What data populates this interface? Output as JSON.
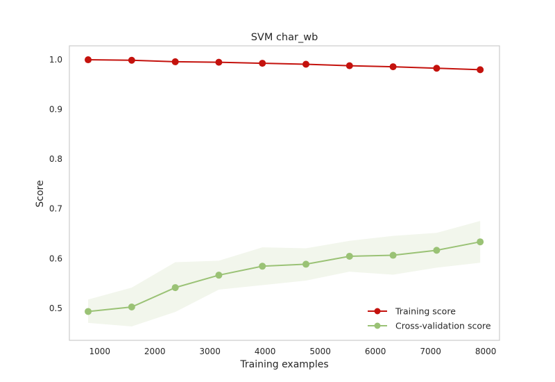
{
  "chart_data": {
    "type": "line",
    "title": "SVM char_wb",
    "xlabel": "Training examples",
    "ylabel": "Score",
    "xlim": [
      450,
      8250
    ],
    "ylim": [
      0.435,
      1.027
    ],
    "xticks": [
      1000,
      2000,
      3000,
      4000,
      5000,
      6000,
      7000,
      8000
    ],
    "yticks": [
      0.5,
      0.6,
      0.7,
      0.8,
      0.9,
      1.0
    ],
    "xtick_labels": [
      "1000",
      "2000",
      "3000",
      "4000",
      "5000",
      "6000",
      "7000",
      "8000"
    ],
    "ytick_labels": [
      "0.5",
      "0.6",
      "0.7",
      "0.8",
      "0.9",
      "1.0"
    ],
    "grid": false,
    "legend_position": "bottom-right",
    "x": [
      790,
      1580,
      2370,
      3160,
      3950,
      4740,
      5530,
      6320,
      7110,
      7900
    ],
    "series": [
      {
        "name": "Training score",
        "color": "#c4120d",
        "values": [
          0.999,
          0.998,
          0.995,
          0.994,
          0.992,
          0.99,
          0.987,
          0.985,
          0.982,
          0.979
        ],
        "band_lower": [
          0.998,
          0.997,
          0.994,
          0.993,
          0.991,
          0.989,
          0.986,
          0.984,
          0.981,
          0.978
        ],
        "band_upper": [
          1.0,
          0.999,
          0.996,
          0.995,
          0.993,
          0.991,
          0.988,
          0.986,
          0.983,
          0.98
        ]
      },
      {
        "name": "Cross-validation score",
        "color": "#9ac275",
        "band_color": "#f2f6ec",
        "values": [
          0.493,
          0.502,
          0.541,
          0.566,
          0.584,
          0.588,
          0.604,
          0.606,
          0.616,
          0.633
        ],
        "band_lower": [
          0.47,
          0.463,
          0.492,
          0.537,
          0.546,
          0.555,
          0.573,
          0.567,
          0.581,
          0.591
        ],
        "band_upper": [
          0.517,
          0.541,
          0.592,
          0.595,
          0.622,
          0.62,
          0.635,
          0.645,
          0.651,
          0.675
        ]
      }
    ]
  }
}
